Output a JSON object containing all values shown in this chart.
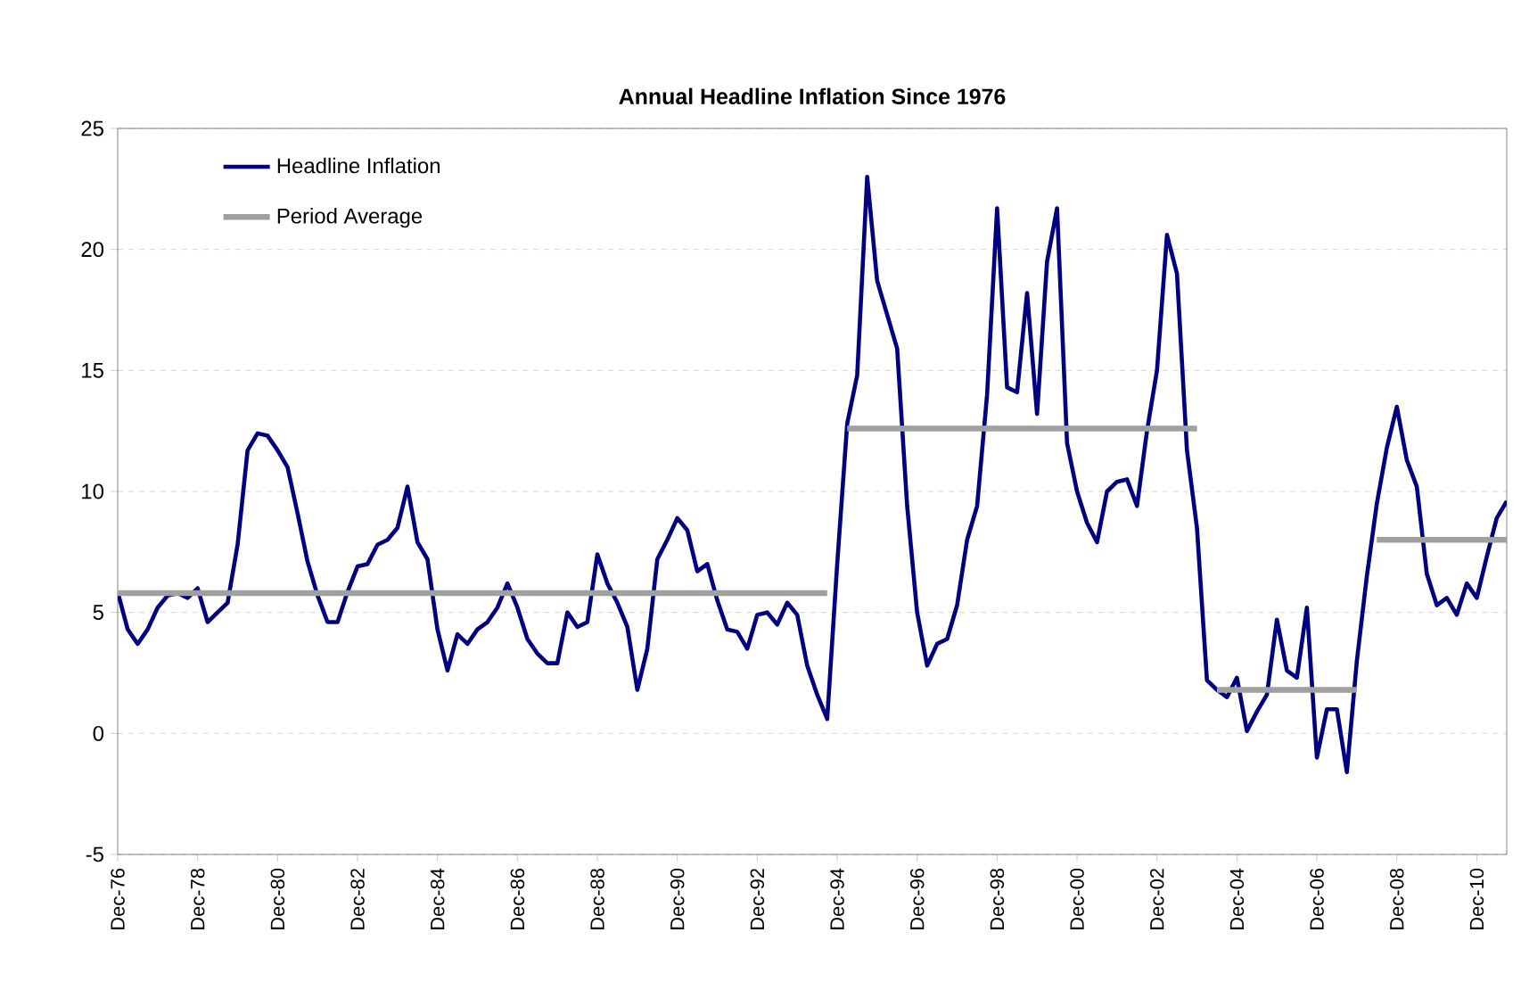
{
  "chart_data": {
    "type": "line",
    "title": "Annual Headline Inflation Since 1976",
    "categories": [
      "Dec-76",
      null,
      null,
      null,
      null,
      null,
      null,
      null,
      "Dec-78",
      null,
      null,
      null,
      null,
      null,
      null,
      null,
      "Dec-80",
      null,
      null,
      null,
      null,
      null,
      null,
      null,
      "Dec-82",
      null,
      null,
      null,
      null,
      null,
      null,
      null,
      "Dec-84",
      null,
      null,
      null,
      null,
      null,
      null,
      null,
      "Dec-86",
      null,
      null,
      null,
      null,
      null,
      null,
      null,
      "Dec-88",
      null,
      null,
      null,
      null,
      null,
      null,
      null,
      "Dec-90",
      null,
      null,
      null,
      null,
      null,
      null,
      null,
      "Dec-92",
      null,
      null,
      null,
      null,
      null,
      null,
      null,
      "Dec-94",
      null,
      null,
      null,
      null,
      null,
      null,
      null,
      "Dec-96",
      null,
      null,
      null,
      null,
      null,
      null,
      null,
      "Dec-98",
      null,
      null,
      null,
      null,
      null,
      null,
      null,
      "Dec-00",
      null,
      null,
      null,
      null,
      null,
      null,
      null,
      "Dec-02",
      null,
      null,
      null,
      null,
      null,
      null,
      null,
      "Dec-04",
      null,
      null,
      null,
      null,
      null,
      null,
      null,
      "Dec-06",
      null,
      null,
      null,
      null,
      null,
      null,
      null,
      "Dec-08",
      null,
      null,
      null,
      null,
      null,
      null,
      null,
      "Dec-10",
      null,
      null,
      null
    ],
    "series": [
      {
        "name": "Headline Inflation",
        "color": "#000080",
        "values": [
          5.85,
          4.3,
          3.7,
          4.3,
          5.2,
          5.7,
          5.8,
          5.6,
          6.0,
          4.6,
          5.0,
          5.4,
          7.8,
          11.7,
          12.4,
          12.3,
          11.7,
          11.0,
          9.1,
          7.1,
          5.7,
          4.6,
          4.6,
          5.85,
          6.9,
          7.0,
          7.8,
          8.0,
          8.5,
          10.2,
          7.9,
          7.2,
          4.3,
          2.6,
          4.1,
          3.7,
          4.3,
          4.6,
          5.2,
          6.2,
          5.2,
          3.9,
          3.3,
          2.9,
          2.9,
          5.0,
          4.4,
          4.6,
          7.4,
          6.2,
          5.4,
          4.4,
          1.8,
          3.5,
          7.2,
          8.0,
          8.9,
          8.4,
          6.7,
          7.0,
          5.5,
          4.3,
          4.2,
          3.5,
          4.9,
          5.0,
          4.5,
          5.4,
          4.9,
          2.8,
          1.6,
          0.6,
          7.0,
          12.8,
          14.8,
          23.0,
          18.7,
          17.3,
          15.9,
          9.4,
          5.0,
          2.8,
          3.7,
          3.9,
          5.3,
          8.0,
          9.4,
          14.0,
          21.7,
          14.3,
          14.1,
          18.2,
          13.2,
          19.5,
          21.7,
          12.0,
          10.0,
          8.7,
          7.9,
          10.0,
          10.4,
          10.5,
          9.4,
          12.5,
          15.0,
          20.6,
          19.0,
          11.7,
          8.5,
          2.2,
          1.8,
          1.5,
          2.3,
          0.1,
          0.9,
          1.6,
          4.7,
          2.6,
          2.3,
          5.2,
          -1.0,
          1.0,
          1.0,
          -1.6,
          3.0,
          6.5,
          9.5,
          11.8,
          13.5,
          11.3,
          10.2,
          6.6,
          5.3,
          5.6,
          4.9,
          6.2,
          5.6,
          7.3,
          8.9,
          9.6
        ]
      },
      {
        "name": "Period Average",
        "color": "#a0a0a0",
        "values": [
          5.8,
          5.8,
          5.8,
          5.8,
          5.8,
          5.8,
          5.8,
          5.8,
          5.8,
          5.8,
          5.8,
          5.8,
          5.8,
          5.8,
          5.8,
          5.8,
          5.8,
          5.8,
          5.8,
          5.8,
          5.8,
          5.8,
          5.8,
          5.8,
          5.8,
          5.8,
          5.8,
          5.8,
          5.8,
          5.8,
          5.8,
          5.8,
          5.8,
          5.8,
          5.8,
          5.8,
          5.8,
          5.8,
          5.8,
          5.8,
          5.8,
          5.8,
          5.8,
          5.8,
          5.8,
          5.8,
          5.8,
          5.8,
          5.8,
          5.8,
          5.8,
          5.8,
          5.8,
          5.8,
          5.8,
          5.8,
          5.8,
          5.8,
          5.8,
          5.8,
          5.8,
          5.8,
          5.8,
          5.8,
          5.8,
          5.8,
          5.8,
          5.8,
          5.8,
          5.8,
          5.8,
          5.8,
          null,
          12.6,
          12.6,
          12.6,
          12.6,
          12.6,
          12.6,
          12.6,
          12.6,
          12.6,
          12.6,
          12.6,
          12.6,
          12.6,
          12.6,
          12.6,
          12.6,
          12.6,
          12.6,
          12.6,
          12.6,
          12.6,
          12.6,
          12.6,
          12.6,
          12.6,
          12.6,
          12.6,
          12.6,
          12.6,
          12.6,
          12.6,
          12.6,
          12.6,
          12.6,
          12.6,
          12.6,
          null,
          1.8,
          1.8,
          1.8,
          1.8,
          1.8,
          1.8,
          1.8,
          1.8,
          1.8,
          1.8,
          1.8,
          1.8,
          1.8,
          1.8,
          1.8,
          null,
          8.0,
          8.0,
          8.0,
          8.0,
          8.0,
          8.0,
          8.0,
          8.0,
          8.0,
          8.0,
          8.0,
          8.0,
          8.0,
          8.0
        ]
      }
    ],
    "ylim": [
      -5,
      25
    ],
    "yticks": [
      -5,
      0,
      5,
      10,
      15,
      20,
      25
    ],
    "grid": "y",
    "legend": "top left"
  }
}
